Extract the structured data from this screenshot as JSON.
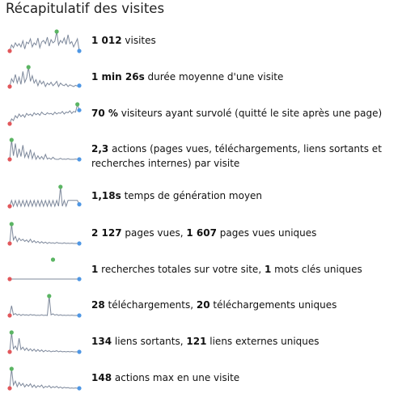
{
  "page": {
    "title": "Récapitulatif des visites"
  },
  "colors": {
    "line": "#7d889b",
    "min": "#e2575b",
    "max": "#5bb563",
    "last": "#4f97e4"
  },
  "metrics": [
    {
      "id": "visits",
      "icon": "sparkline-visits-icon",
      "segments": [
        [
          "1 012",
          true
        ],
        [
          " visites",
          false
        ]
      ],
      "series": [
        40,
        55,
        48,
        60,
        52,
        58,
        50,
        65,
        45,
        62,
        58,
        70,
        50,
        60,
        55,
        72,
        48,
        62,
        66,
        58,
        74,
        52,
        68,
        60,
        64,
        88,
        55,
        66,
        60,
        72,
        56,
        80,
        58,
        63,
        50,
        60,
        70,
        40
      ]
    },
    {
      "id": "avg-duration",
      "icon": "sparkline-duration-icon",
      "segments": [
        [
          "1 min 26s",
          true
        ],
        [
          " durée moyenne d'une visite",
          false
        ]
      ],
      "series": [
        50,
        68,
        60,
        78,
        58,
        72,
        55,
        85,
        60,
        70,
        95,
        62,
        75,
        58,
        66,
        52,
        64,
        56,
        62,
        50,
        58,
        54,
        60,
        52,
        56,
        62,
        50,
        58,
        54,
        52,
        56,
        50,
        54,
        52,
        50,
        53,
        51,
        52
      ]
    },
    {
      "id": "bounce-rate",
      "icon": "sparkline-bounce-icon",
      "segments": [
        [
          "70 %",
          true
        ],
        [
          " visiteurs ayant survolé (quitté le site après une page)",
          false
        ]
      ],
      "series": [
        30,
        45,
        40,
        55,
        48,
        60,
        52,
        58,
        50,
        62,
        56,
        60,
        54,
        64,
        58,
        62,
        56,
        66,
        60,
        58,
        64,
        60,
        62,
        58,
        66,
        60,
        64,
        62,
        68,
        60,
        66,
        64,
        70,
        62,
        68,
        66,
        90,
        72
      ]
    },
    {
      "id": "actions-per-visit",
      "icon": "sparkline-actions-icon",
      "segments": [
        [
          "2,3",
          true
        ],
        [
          " actions (pages vues, téléchargements, liens sortants et recherches internes) par visite",
          false
        ]
      ],
      "series": [
        30,
        85,
        40,
        75,
        35,
        60,
        38,
        70,
        36,
        50,
        34,
        58,
        32,
        48,
        30,
        40,
        31,
        38,
        30,
        44,
        31,
        34,
        30,
        36,
        31,
        30,
        30,
        33,
        30,
        31,
        30,
        32,
        30,
        30,
        30,
        31,
        30,
        30
      ]
    },
    {
      "id": "generation-time",
      "icon": "sparkline-generation-time-icon",
      "segments": [
        [
          "1,18s",
          true
        ],
        [
          " temps de génération moyen",
          false
        ]
      ],
      "series": [
        40,
        55,
        40,
        55,
        40,
        55,
        40,
        55,
        40,
        55,
        40,
        55,
        40,
        55,
        40,
        55,
        40,
        55,
        40,
        55,
        40,
        55,
        40,
        55,
        40,
        55,
        40,
        90,
        40,
        55,
        40,
        55,
        55,
        55,
        55,
        55,
        55,
        45
      ]
    },
    {
      "id": "pageviews",
      "icon": "sparkline-pageviews-icon",
      "segments": [
        [
          "2 127",
          true
        ],
        [
          " pages vues, ",
          false
        ],
        [
          "1 607",
          true
        ],
        [
          " pages vues uniques",
          false
        ]
      ],
      "series": [
        30,
        85,
        40,
        50,
        35,
        45,
        38,
        42,
        36,
        40,
        34,
        42,
        33,
        38,
        32,
        36,
        31,
        35,
        31,
        34,
        30,
        33,
        31,
        32,
        30,
        33,
        31,
        31,
        30,
        32,
        30,
        31,
        30,
        31,
        30,
        30,
        30,
        30
      ]
    },
    {
      "id": "searches",
      "icon": "sparkline-searches-icon",
      "segments": [
        [
          "1",
          true
        ],
        [
          " recherches totales sur votre site, ",
          false
        ],
        [
          "1",
          true
        ],
        [
          " mots clés uniques",
          false
        ]
      ],
      "series": [
        30,
        30,
        30,
        30,
        30,
        30,
        30,
        30,
        30,
        30,
        30,
        30,
        30,
        30,
        30,
        30,
        30,
        30,
        30,
        30,
        30,
        30,
        30,
        30,
        30,
        30,
        30,
        30,
        30,
        30,
        30,
        30,
        30,
        30,
        30,
        30,
        30,
        30
      ]
    },
    {
      "id": "downloads",
      "icon": "sparkline-downloads-icon",
      "segments": [
        [
          "28",
          true
        ],
        [
          " téléchargements, ",
          false
        ],
        [
          "20",
          true
        ],
        [
          " téléchargements uniques",
          false
        ]
      ],
      "series": [
        30,
        60,
        32,
        36,
        31,
        34,
        30,
        33,
        31,
        32,
        30,
        33,
        31,
        32,
        30,
        31,
        30,
        32,
        30,
        31,
        30,
        90,
        32,
        35,
        31,
        33,
        30,
        32,
        30,
        31,
        30,
        31,
        30,
        31,
        30,
        30,
        30,
        30
      ]
    },
    {
      "id": "outlinks",
      "icon": "sparkline-outlinks-icon",
      "segments": [
        [
          "134",
          true
        ],
        [
          " liens sortants, ",
          false
        ],
        [
          "121",
          true
        ],
        [
          " liens externes uniques",
          false
        ]
      ],
      "series": [
        30,
        80,
        38,
        45,
        35,
        65,
        36,
        42,
        34,
        40,
        33,
        38,
        32,
        37,
        31,
        36,
        31,
        35,
        30,
        34,
        31,
        33,
        30,
        32,
        31,
        33,
        30,
        32,
        30,
        31,
        30,
        31,
        30,
        31,
        30,
        30,
        30,
        30
      ]
    },
    {
      "id": "max-actions",
      "icon": "sparkline-max-actions-icon",
      "segments": [
        [
          "148",
          true
        ],
        [
          " actions max en une visite",
          false
        ]
      ],
      "series": [
        30,
        90,
        40,
        52,
        35,
        48,
        38,
        45,
        34,
        42,
        36,
        44,
        33,
        40,
        32,
        38,
        34,
        40,
        31,
        36,
        33,
        38,
        31,
        35,
        32,
        36,
        31,
        34,
        30,
        33,
        31,
        32,
        30,
        31,
        30,
        31,
        30,
        30
      ]
    }
  ]
}
